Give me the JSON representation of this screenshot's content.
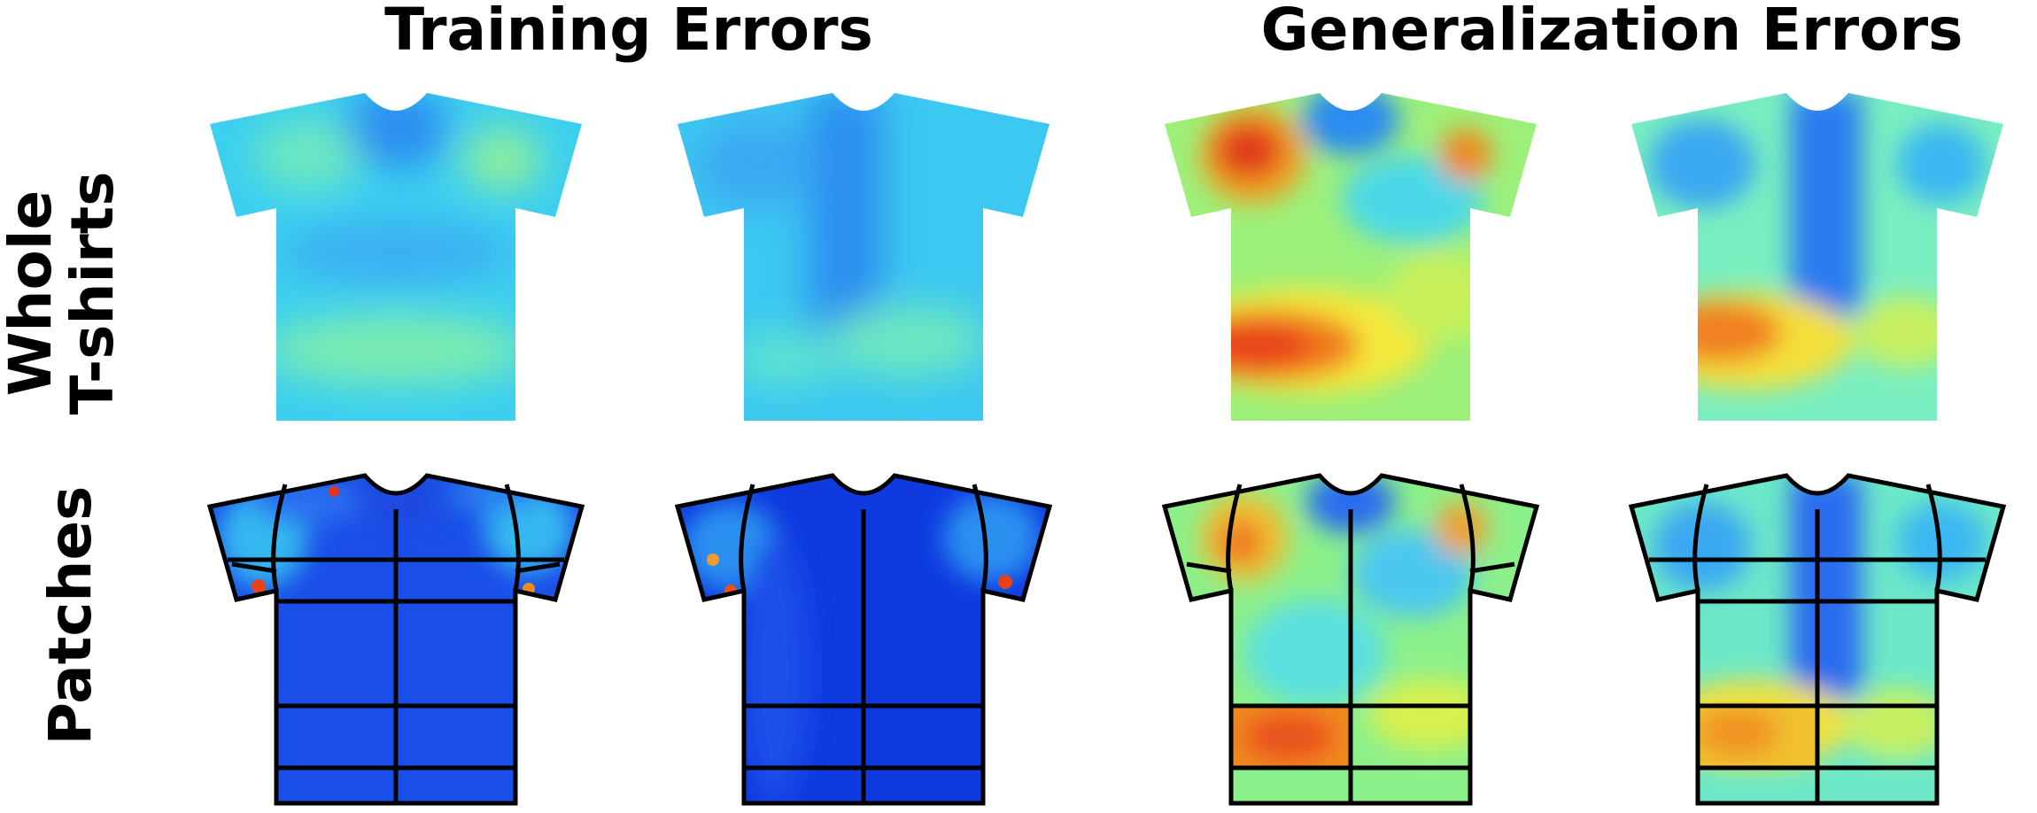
{
  "titles": {
    "training": "Training Errors",
    "generalization": "Generalization Errors"
  },
  "rows": {
    "whole_line1": "Whole",
    "whole_line2": "T-shirts",
    "patches": "Patches"
  },
  "colormap": "jet",
  "colors": {
    "jet_dark_blue": "#0a3ae0",
    "jet_blue": "#2a8cf0",
    "jet_cyan": "#36d8f4",
    "jet_green": "#7ff29a",
    "jet_yellow": "#f4f23a",
    "jet_orange": "#f78a1e",
    "jet_red": "#e8321a",
    "outline": "#000000"
  }
}
